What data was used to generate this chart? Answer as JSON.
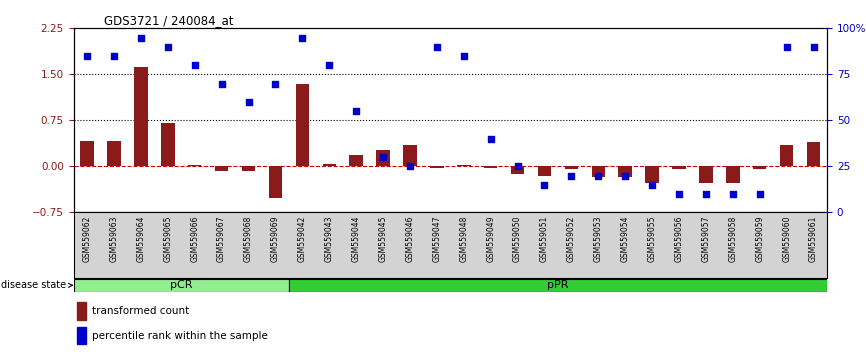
{
  "title": "GDS3721 / 240084_at",
  "samples": [
    "GSM559062",
    "GSM559063",
    "GSM559064",
    "GSM559065",
    "GSM559066",
    "GSM559067",
    "GSM559068",
    "GSM559069",
    "GSM559042",
    "GSM559043",
    "GSM559044",
    "GSM559045",
    "GSM559046",
    "GSM559047",
    "GSM559048",
    "GSM559049",
    "GSM559050",
    "GSM559051",
    "GSM559052",
    "GSM559053",
    "GSM559054",
    "GSM559055",
    "GSM559056",
    "GSM559057",
    "GSM559058",
    "GSM559059",
    "GSM559060",
    "GSM559061"
  ],
  "bar_values": [
    0.42,
    0.42,
    1.62,
    0.7,
    0.02,
    -0.07,
    -0.07,
    -0.52,
    1.35,
    0.04,
    0.18,
    0.26,
    0.35,
    -0.03,
    0.02,
    -0.03,
    -0.12,
    -0.15,
    -0.05,
    -0.18,
    -0.18,
    -0.27,
    -0.04,
    -0.27,
    -0.27,
    -0.04,
    0.35,
    0.4
  ],
  "dot_values_pct": [
    85,
    85,
    95,
    90,
    80,
    70,
    60,
    70,
    95,
    80,
    55,
    30,
    25,
    90,
    85,
    40,
    25,
    15,
    20,
    20,
    20,
    15,
    10,
    10,
    10,
    10,
    90,
    90
  ],
  "pCR_count": 8,
  "pPR_count": 20,
  "bar_color": "#8B1A1A",
  "dot_color": "#0000CC",
  "zero_line_color": "#CC0000",
  "pCR_color": "#90EE90",
  "pPR_color": "#32CD32",
  "pCR_label": "pCR",
  "pPR_label": "pPR",
  "disease_state_label": "disease state",
  "legend_bar_label": "transformed count",
  "legend_dot_label": "percentile rank within the sample",
  "ylim_left": [
    -0.75,
    2.25
  ],
  "ylim_right": [
    0,
    100
  ],
  "yticks_left": [
    -0.75,
    0,
    0.75,
    1.5,
    2.25
  ],
  "yticks_right": [
    0,
    25,
    50,
    75,
    100
  ],
  "hlines": [
    0.75,
    1.5
  ],
  "bar_width": 0.5,
  "background_color": "#ffffff",
  "tick_bg_color": "#d3d3d3",
  "plot_bg_color": "#ffffff"
}
